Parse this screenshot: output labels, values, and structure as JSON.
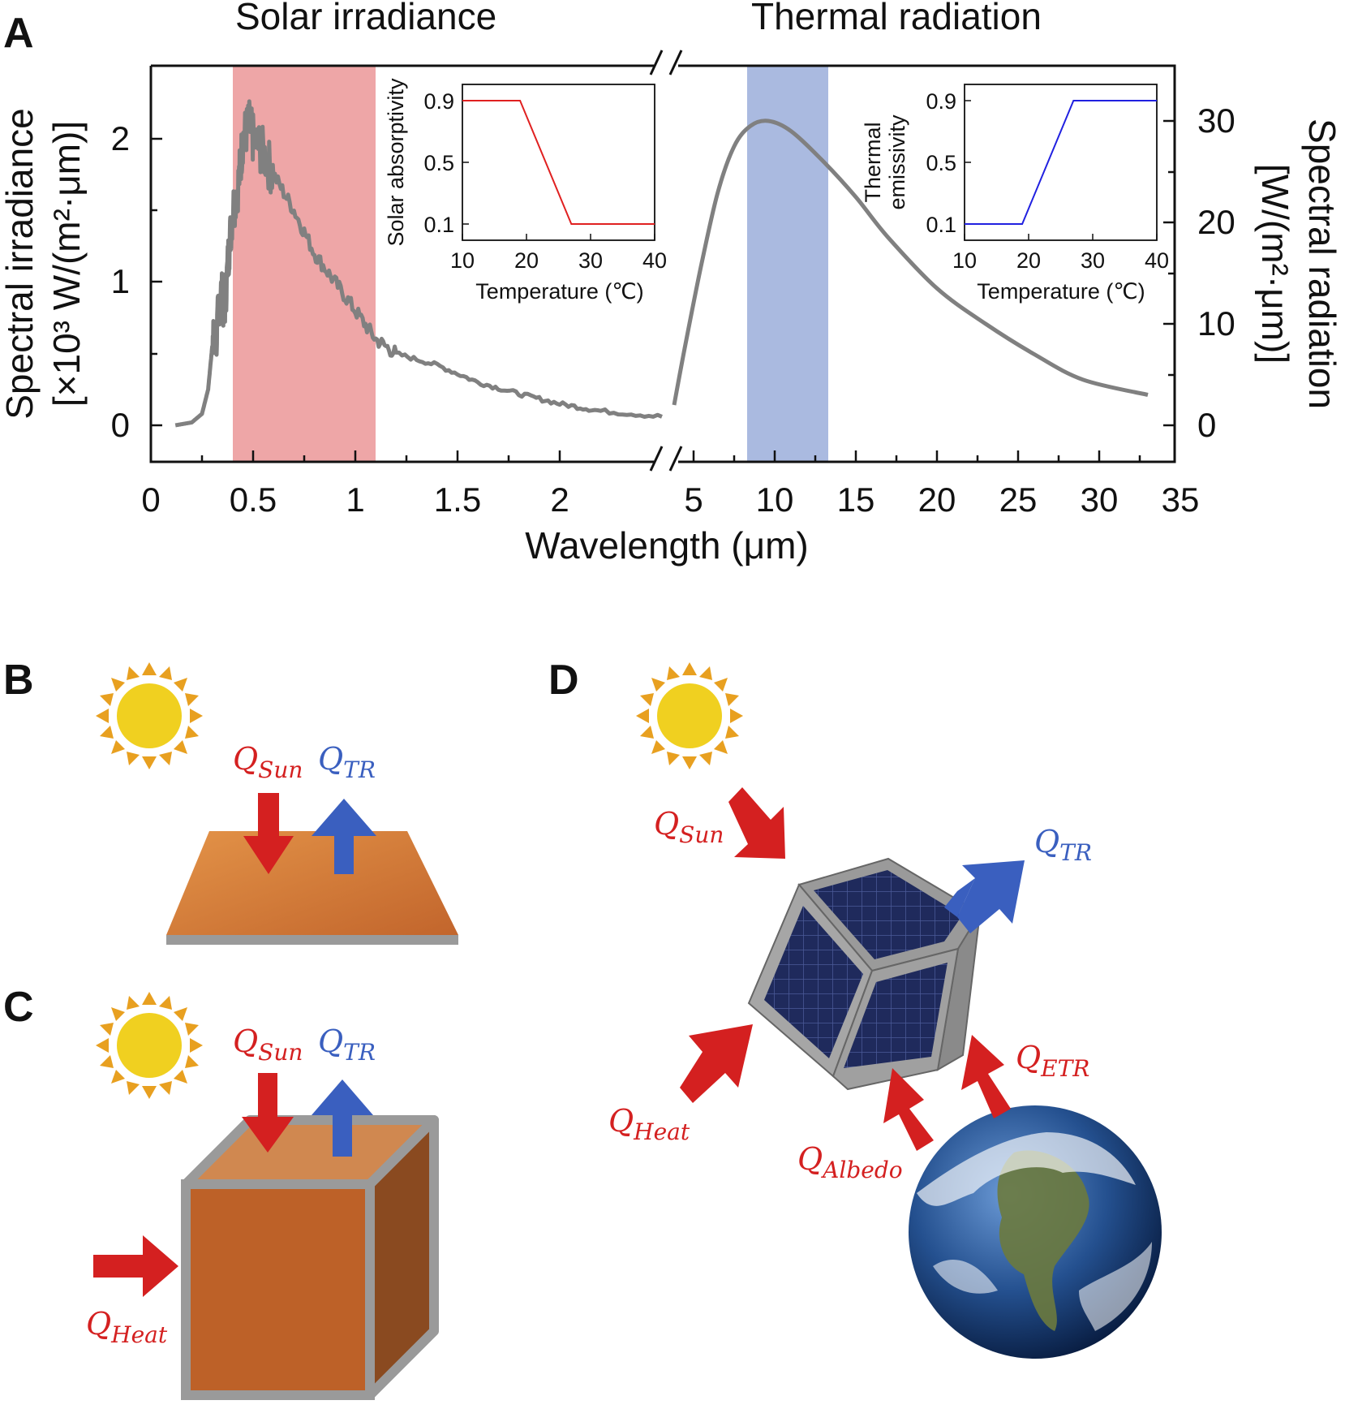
{
  "panels": {
    "a": "A",
    "b": "B",
    "c": "C",
    "d": "D"
  },
  "chart_data": {
    "type": "line",
    "section_titles": {
      "left": "Solar irradiance",
      "right": "Thermal radiation"
    },
    "xlabel": "Wavelength (μm)",
    "ylabel_left": {
      "line1": "Spectral irradiance",
      "line2": "[×10³ W/(m²·μm)]"
    },
    "ylabel_right": {
      "line1": "Spectral radiation",
      "line2": "[W/(m²·μm)]"
    },
    "x_ticks_left": [
      "0",
      "0.5",
      "1",
      "1.5",
      "2"
    ],
    "x_ticks_right": [
      "5",
      "10",
      "15",
      "20",
      "25",
      "30",
      "35"
    ],
    "y_ticks_left": [
      "0",
      "1",
      "2"
    ],
    "y_ticks_right": [
      "0",
      "10",
      "20",
      "30"
    ],
    "axis_break": true,
    "series": [
      {
        "axis": "left",
        "x": [
          0.12,
          0.2,
          0.25,
          0.28,
          0.3,
          0.32,
          0.34,
          0.36,
          0.38,
          0.4,
          0.43,
          0.45,
          0.48,
          0.5,
          0.55,
          0.6,
          0.7,
          0.8,
          0.9,
          1.0,
          1.1,
          1.2,
          1.4,
          1.6,
          1.8,
          2.0,
          2.2,
          2.5
        ],
        "y": [
          0.0,
          0.02,
          0.08,
          0.25,
          0.55,
          0.6,
          0.95,
          0.8,
          1.2,
          1.5,
          1.7,
          2.0,
          2.1,
          2.0,
          1.9,
          1.75,
          1.5,
          1.2,
          1.0,
          0.8,
          0.6,
          0.5,
          0.42,
          0.3,
          0.22,
          0.15,
          0.1,
          0.06
        ]
      },
      {
        "axis": "right",
        "x": [
          3.8,
          4.5,
          5.5,
          6.5,
          7.5,
          8.5,
          9.6,
          11,
          13,
          15,
          17,
          20,
          23,
          26,
          29,
          33
        ],
        "y": [
          2,
          8,
          16,
          23,
          27.5,
          29.5,
          30,
          29,
          26,
          22.5,
          18.5,
          13.5,
          10,
          7,
          4.5,
          3
        ]
      }
    ],
    "highlight_bands": [
      {
        "axis": "left",
        "x_range": [
          0.4,
          1.1
        ],
        "color": "#e8888a"
      },
      {
        "axis": "right",
        "x_range": [
          8,
          13
        ],
        "color": "#8ea3d6"
      }
    ],
    "insets": [
      {
        "ylabel": "Solar absorptivity",
        "xlabel": "Temperature (℃)",
        "x_ticks": [
          "10",
          "20",
          "30",
          "40"
        ],
        "y_ticks": [
          "0.1",
          "0.5",
          "0.9"
        ],
        "color": "#e02020",
        "x": [
          10,
          19,
          27,
          40
        ],
        "y": [
          0.9,
          0.9,
          0.1,
          0.1
        ]
      },
      {
        "ylabel_line1": "Thermal",
        "ylabel_line2": "emissivity",
        "xlabel": "Temperature (℃)",
        "x_ticks": [
          "10",
          "20",
          "30",
          "40"
        ],
        "y_ticks": [
          "0.1",
          "0.5",
          "0.9"
        ],
        "color": "#2020e0",
        "x": [
          10,
          19,
          27,
          40
        ],
        "y": [
          0.1,
          0.1,
          0.9,
          0.9
        ]
      }
    ]
  },
  "labels": {
    "sun": {
      "main": "Q",
      "sub": "Sun"
    },
    "tr": {
      "main": "Q",
      "sub": "TR"
    },
    "heat": {
      "main": "Q",
      "sub": "Heat"
    },
    "etr": {
      "main": "Q",
      "sub": "ETR"
    },
    "albedo": {
      "main": "Q",
      "sub": "Albedo"
    }
  },
  "colors": {
    "heat_in": "#d42020",
    "heat_out": "#3a5fbf",
    "sun": "#f0d020",
    "rays": "#e8a020",
    "copper": "#c8703a",
    "frame": "#9a9a9a",
    "curve": "#808080"
  }
}
